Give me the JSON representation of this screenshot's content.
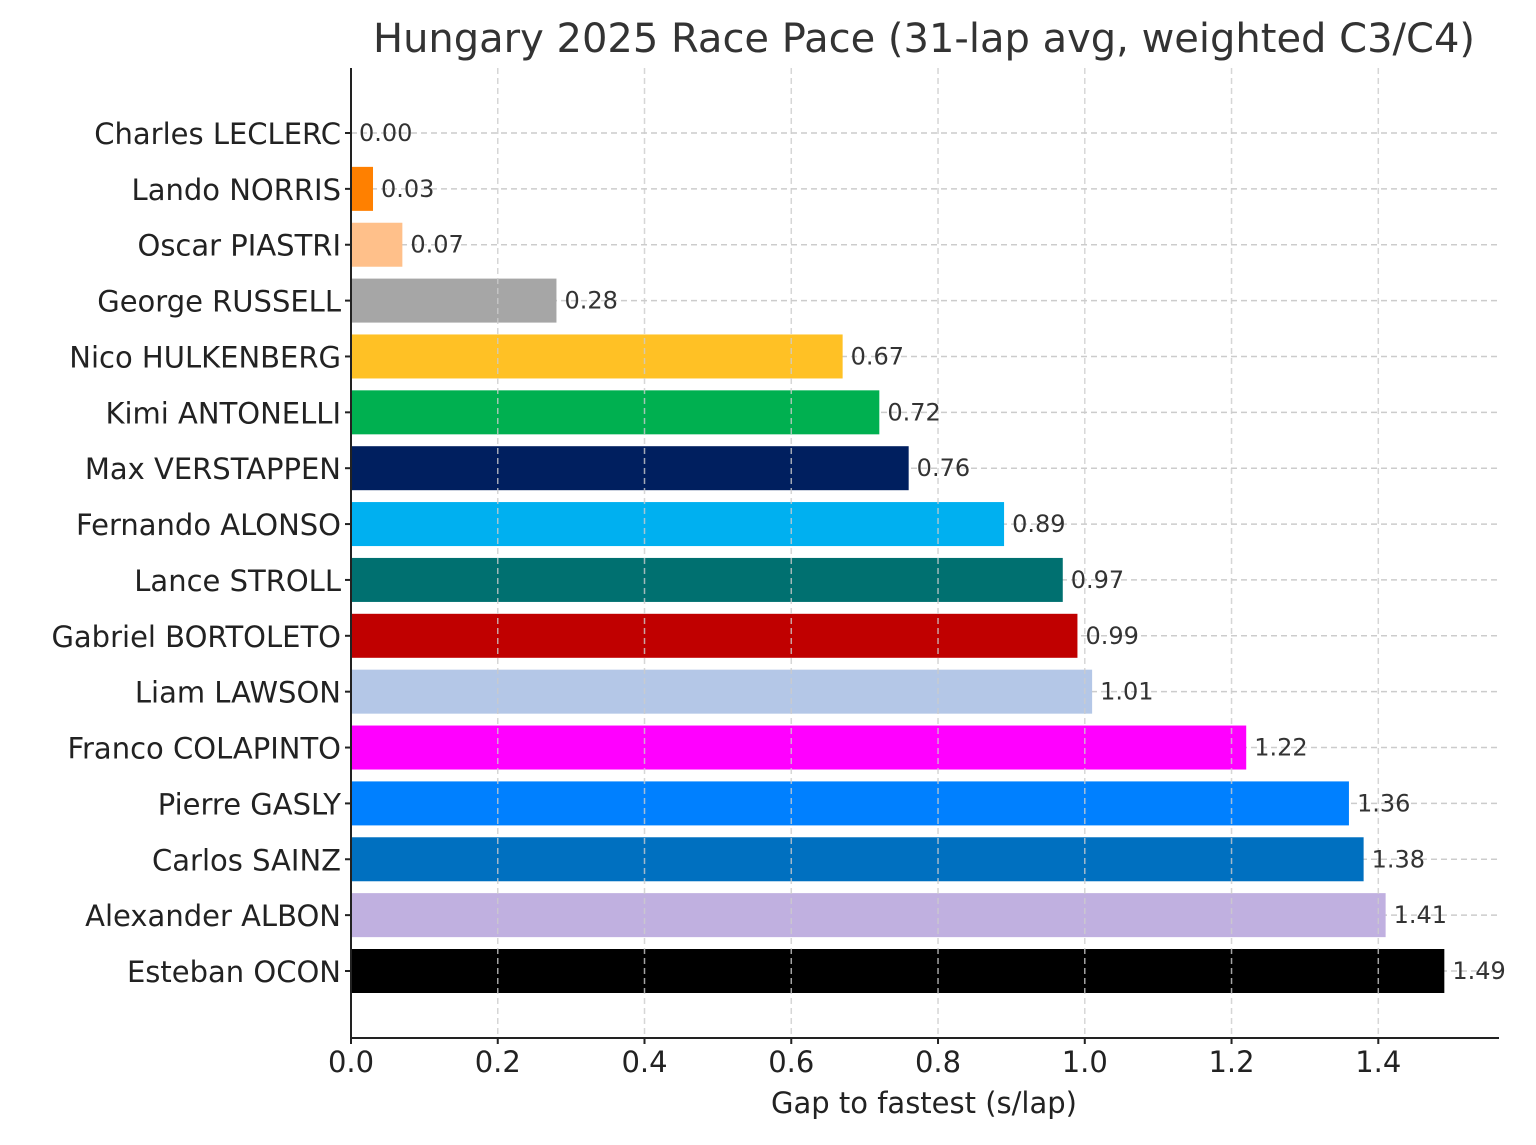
{
  "chart_data": {
    "type": "bar",
    "orientation": "horizontal",
    "title": "Hungary 2025 Race Pace (31-lap avg, weighted C3/C4)",
    "xlabel": "Gap to fastest (s/lap)",
    "ylabel": "",
    "xlim": [
      0,
      1.5645
    ],
    "xticks": [
      "0.0",
      "0.2",
      "0.4",
      "0.6",
      "0.8",
      "1.0",
      "1.2",
      "1.4"
    ],
    "xtick_values": [
      0,
      0.2,
      0.4,
      0.6,
      0.8,
      1.0,
      1.2,
      1.4
    ],
    "grid": true,
    "categories": [
      "Charles LECLERC",
      "Lando NORRIS",
      "Oscar PIASTRI",
      "George RUSSELL",
      "Nico HULKENBERG",
      "Kimi ANTONELLI",
      "Max VERSTAPPEN",
      "Fernando ALONSO",
      "Lance STROLL",
      "Gabriel BORTOLETO",
      "Liam LAWSON",
      "Franco COLAPINTO",
      "Pierre GASLY",
      "Carlos SAINZ",
      "Alexander ALBON",
      "Esteban OCON"
    ],
    "values": [
      0.0,
      0.03,
      0.07,
      0.28,
      0.67,
      0.72,
      0.76,
      0.89,
      0.97,
      0.99,
      1.01,
      1.22,
      1.36,
      1.38,
      1.41,
      1.49
    ],
    "labels": [
      "0.00",
      "0.03",
      "0.07",
      "0.28",
      "0.67",
      "0.72",
      "0.76",
      "0.89",
      "0.97",
      "0.99",
      "1.01",
      "1.22",
      "1.36",
      "1.38",
      "1.41",
      "1.49"
    ],
    "colors": [
      "#DC0000",
      "#FF8000",
      "#FFC08A",
      "#A6A6A6",
      "#FFC125",
      "#00B050",
      "#001F5F",
      "#00B0F0",
      "#007070",
      "#C00000",
      "#B4C7E7",
      "#FF00FF",
      "#0080FF",
      "#0070C0",
      "#C0B0E0",
      "#000000"
    ]
  }
}
